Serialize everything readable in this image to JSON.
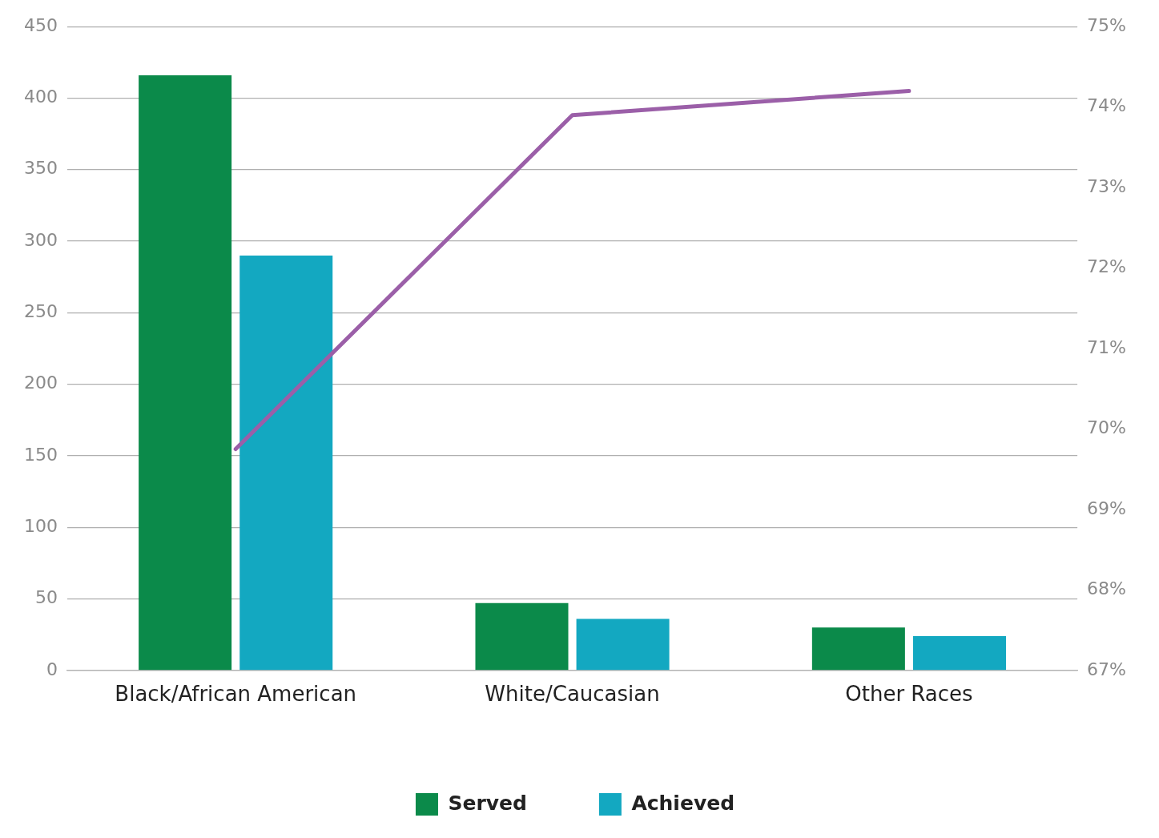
{
  "chart_data": {
    "type": "bar",
    "categories": [
      "Black/African American",
      "White/Caucasian",
      "Other Races"
    ],
    "series": [
      {
        "name": "Served",
        "color": "#0b8a4a",
        "values": [
          416,
          47,
          30
        ]
      },
      {
        "name": "Achieved",
        "color": "#13a8c1",
        "values": [
          290,
          36,
          24
        ]
      },
      {
        "type": "line",
        "axis": "y2",
        "color": "#9b5fa8",
        "values": [
          69.75,
          73.9,
          74.2
        ]
      }
    ],
    "ylim": [
      0,
      450
    ],
    "yticks": [
      0,
      50,
      100,
      150,
      200,
      250,
      300,
      350,
      400,
      450
    ],
    "y2lim": [
      67,
      75
    ],
    "y2ticks": [
      {
        "value": 67,
        "label": "67%"
      },
      {
        "value": 68,
        "label": "68%"
      },
      {
        "value": 69,
        "label": "69%"
      },
      {
        "value": 70,
        "label": "70%"
      },
      {
        "value": 71,
        "label": "71%"
      },
      {
        "value": 72,
        "label": "72%"
      },
      {
        "value": 73,
        "label": "73%"
      },
      {
        "value": 74,
        "label": "74%"
      },
      {
        "value": 75,
        "label": "75%"
      }
    ],
    "grid": "y",
    "legend": "bottom",
    "marker": "none"
  }
}
